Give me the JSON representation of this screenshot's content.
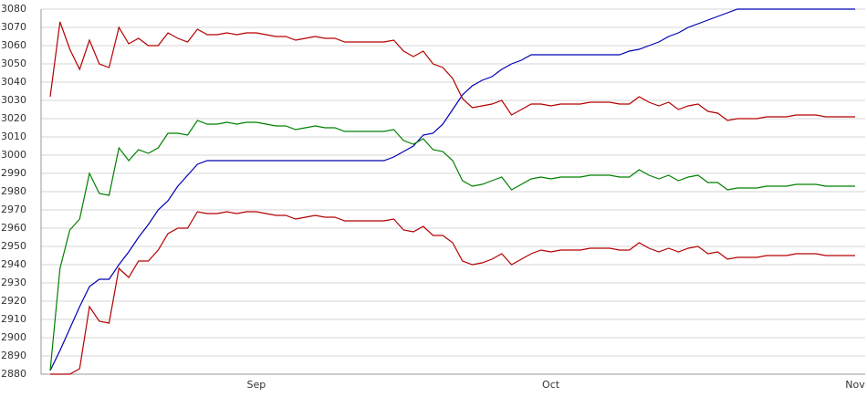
{
  "chart_data": {
    "type": "line",
    "categories": [
      null,
      null,
      null,
      null,
      null,
      null,
      null,
      null,
      null,
      null,
      null,
      null,
      null,
      null,
      null,
      null,
      null,
      null,
      null,
      null,
      null,
      "Sep",
      null,
      null,
      null,
      null,
      null,
      null,
      null,
      null,
      null,
      null,
      null,
      null,
      null,
      null,
      null,
      null,
      null,
      null,
      null,
      null,
      null,
      null,
      null,
      null,
      null,
      null,
      null,
      null,
      null,
      "Oct",
      null,
      null,
      null,
      null,
      null,
      null,
      null,
      null,
      null,
      null,
      null,
      null,
      null,
      null,
      null,
      null,
      null,
      null,
      null,
      null,
      null,
      null,
      null,
      null,
      null,
      null,
      null,
      null,
      null,
      null,
      "Nov"
    ],
    "ylim": [
      2880,
      3080
    ],
    "yticks": [
      2880,
      2890,
      2900,
      2910,
      2920,
      2930,
      2940,
      2950,
      2960,
      2970,
      2980,
      2990,
      3000,
      3010,
      3020,
      3030,
      3040,
      3050,
      3060,
      3070,
      3080
    ],
    "grid": true,
    "series": [
      {
        "color": "#0000b4",
        "values": [
          2882,
          2893,
          2905,
          2917,
          2928,
          2932,
          2932,
          2940,
          2947,
          2955,
          2962,
          2970,
          2975,
          2983,
          2989,
          2995,
          2997,
          2997,
          2997,
          2997,
          2997,
          2997,
          2997,
          2997,
          2997,
          2997,
          2997,
          2997,
          2997,
          2997,
          2997,
          2997,
          2997,
          2997,
          2997,
          2999,
          3002,
          3005,
          3011,
          3012,
          3017,
          3025,
          3033,
          3038,
          3041,
          3043,
          3047,
          3050,
          3052,
          3055,
          3055,
          3055,
          3055,
          3055,
          3055,
          3055,
          3055,
          3055,
          3055,
          3057,
          3058,
          3060,
          3062,
          3065,
          3067,
          3070,
          3072,
          3074,
          3076,
          3078,
          3080,
          3080,
          3080,
          3080,
          3080,
          3080,
          3080,
          3080,
          3080,
          3080,
          3080,
          3080,
          3080
        ]
      },
      {
        "color": "#b40000",
        "values": [
          3032,
          3073,
          3058,
          3047,
          3063,
          3050,
          3048,
          3070,
          3061,
          3064,
          3060,
          3060,
          3067,
          3064,
          3062,
          3069,
          3066,
          3066,
          3067,
          3066,
          3067,
          3067,
          3066,
          3065,
          3065,
          3063,
          3064,
          3065,
          3064,
          3064,
          3062,
          3062,
          3062,
          3062,
          3062,
          3063,
          3057,
          3054,
          3057,
          3050,
          3048,
          3042,
          3031,
          3026,
          3027,
          3028,
          3030,
          3022,
          3025,
          3028,
          3028,
          3027,
          3028,
          3028,
          3028,
          3029,
          3029,
          3029,
          3028,
          3028,
          3032,
          3029,
          3027,
          3029,
          3025,
          3027,
          3028,
          3024,
          3023,
          3019,
          3020,
          3020,
          3020,
          3021,
          3021,
          3021,
          3022,
          3022,
          3022,
          3021,
          3021,
          3021,
          3021
        ]
      },
      {
        "color": "#008000",
        "values": [
          2882,
          2938,
          2959,
          2965,
          2990,
          2979,
          2978,
          3004,
          2997,
          3003,
          3001,
          3004,
          3012,
          3012,
          3011,
          3019,
          3017,
          3017,
          3018,
          3017,
          3018,
          3018,
          3017,
          3016,
          3016,
          3014,
          3015,
          3016,
          3015,
          3015,
          3013,
          3013,
          3013,
          3013,
          3013,
          3014,
          3008,
          3006,
          3009,
          3003,
          3002,
          2997,
          2986,
          2983,
          2984,
          2986,
          2988,
          2981,
          2984,
          2987,
          2988,
          2987,
          2988,
          2988,
          2988,
          2989,
          2989,
          2989,
          2988,
          2988,
          2992,
          2989,
          2987,
          2989,
          2986,
          2988,
          2989,
          2985,
          2985,
          2981,
          2982,
          2982,
          2982,
          2983,
          2983,
          2983,
          2984,
          2984,
          2984,
          2983,
          2983,
          2983,
          2983
        ]
      },
      {
        "color": "#b40000",
        "values": [
          2880,
          2880,
          2880,
          2883,
          2917,
          2909,
          2908,
          2938,
          2933,
          2942,
          2942,
          2948,
          2957,
          2960,
          2960,
          2969,
          2968,
          2968,
          2969,
          2968,
          2969,
          2969,
          2968,
          2967,
          2967,
          2965,
          2966,
          2967,
          2966,
          2966,
          2964,
          2964,
          2964,
          2964,
          2964,
          2965,
          2959,
          2958,
          2961,
          2956,
          2956,
          2952,
          2942,
          2940,
          2941,
          2943,
          2946,
          2940,
          2943,
          2946,
          2948,
          2947,
          2948,
          2948,
          2948,
          2949,
          2949,
          2949,
          2948,
          2948,
          2952,
          2949,
          2947,
          2949,
          2947,
          2949,
          2950,
          2946,
          2947,
          2943,
          2944,
          2944,
          2944,
          2945,
          2945,
          2945,
          2946,
          2946,
          2946,
          2945,
          2945,
          2945,
          2945
        ]
      }
    ]
  }
}
